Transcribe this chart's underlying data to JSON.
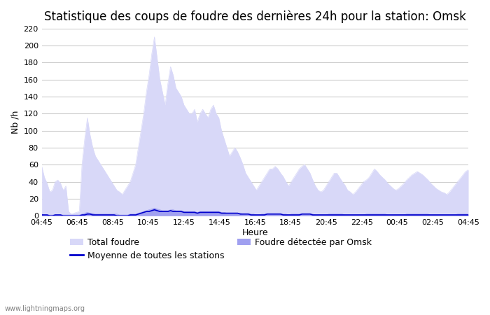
{
  "title": "Statistique des coups de foudre des dernières 24h pour la station: Omsk",
  "ylabel": "Nb /h",
  "xlabel": "Heure",
  "watermark": "www.lightningmaps.org",
  "ylim": [
    0,
    220
  ],
  "yticks": [
    0,
    20,
    40,
    60,
    80,
    100,
    120,
    140,
    160,
    180,
    200,
    220
  ],
  "xtick_labels": [
    "04:45",
    "06:45",
    "08:45",
    "10:45",
    "12:45",
    "14:45",
    "16:45",
    "18:45",
    "20:45",
    "22:45",
    "00:45",
    "02:45",
    "04:45"
  ],
  "color_total": "#d8d8f8",
  "color_detected": "#a0a0f0",
  "color_moyenne": "#0000cc",
  "color_bg": "#ffffff",
  "color_grid": "#cccccc",
  "title_fontsize": 12,
  "label_fontsize": 9,
  "tick_fontsize": 8,
  "total_foudre": [
    58,
    45,
    38,
    28,
    30,
    40,
    42,
    38,
    30,
    35,
    5,
    2,
    3,
    4,
    5,
    60,
    90,
    115,
    95,
    80,
    70,
    65,
    60,
    55,
    50,
    45,
    40,
    35,
    30,
    28,
    25,
    30,
    35,
    40,
    50,
    60,
    80,
    100,
    120,
    145,
    165,
    190,
    210,
    185,
    160,
    145,
    130,
    155,
    175,
    165,
    150,
    145,
    140,
    130,
    125,
    120,
    120,
    125,
    110,
    120,
    125,
    120,
    115,
    125,
    130,
    120,
    115,
    100,
    90,
    80,
    70,
    75,
    80,
    75,
    68,
    60,
    50,
    45,
    40,
    35,
    30,
    35,
    40,
    45,
    50,
    55,
    55,
    58,
    55,
    50,
    46,
    40,
    35,
    40,
    45,
    50,
    55,
    58,
    60,
    55,
    50,
    42,
    35,
    30,
    28,
    30,
    35,
    40,
    45,
    50,
    50,
    45,
    40,
    36,
    30,
    28,
    25,
    28,
    32,
    36,
    40,
    42,
    45,
    50,
    55,
    52,
    48,
    45,
    42,
    38,
    35,
    32,
    30,
    32,
    35,
    38,
    42,
    45,
    48,
    50,
    52,
    50,
    48,
    45,
    42,
    38,
    35,
    32,
    30,
    28,
    27,
    25,
    28,
    32,
    36,
    40,
    44,
    48,
    52,
    54
  ],
  "detected_foudre": [
    2,
    1,
    1,
    1,
    1,
    1,
    1,
    1,
    1,
    1,
    1,
    1,
    1,
    1,
    1,
    2,
    3,
    4,
    3,
    3,
    2,
    2,
    2,
    2,
    2,
    2,
    2,
    2,
    2,
    1,
    1,
    1,
    1,
    2,
    2,
    2,
    3,
    4,
    5,
    6,
    7,
    8,
    9,
    8,
    7,
    6,
    6,
    6,
    7,
    7,
    6,
    6,
    6,
    5,
    5,
    5,
    5,
    5,
    4,
    5,
    5,
    5,
    5,
    5,
    5,
    5,
    5,
    4,
    4,
    3,
    3,
    3,
    3,
    3,
    3,
    2,
    2,
    2,
    2,
    2,
    1,
    1,
    2,
    2,
    2,
    2,
    2,
    2,
    2,
    2,
    2,
    2,
    1,
    2,
    2,
    2,
    2,
    2,
    2,
    2,
    2,
    2,
    1,
    1,
    1,
    1,
    1,
    2,
    2,
    2,
    2,
    2,
    2,
    1,
    1,
    1,
    1,
    1,
    1,
    1,
    1,
    2,
    2,
    2,
    2,
    2,
    2,
    2,
    2,
    1,
    1,
    1,
    1,
    1,
    1,
    1,
    2,
    2,
    2,
    2,
    2,
    2,
    2,
    2,
    2,
    1,
    1,
    1,
    1,
    1,
    1,
    1,
    1,
    1,
    1,
    2,
    2,
    2,
    2,
    2
  ],
  "moyenne": [
    1,
    1,
    1,
    0,
    0,
    1,
    1,
    1,
    0,
    0,
    0,
    0,
    0,
    0,
    0,
    1,
    1,
    2,
    2,
    1,
    1,
    1,
    1,
    1,
    1,
    1,
    1,
    1,
    0,
    0,
    0,
    0,
    0,
    1,
    1,
    1,
    2,
    3,
    4,
    5,
    5,
    6,
    7,
    6,
    5,
    5,
    5,
    5,
    6,
    5,
    5,
    5,
    5,
    4,
    4,
    4,
    4,
    4,
    3,
    4,
    4,
    4,
    4,
    4,
    4,
    4,
    4,
    3,
    3,
    3,
    3,
    3,
    3,
    3,
    2,
    2,
    2,
    2,
    1,
    1,
    1,
    1,
    1,
    1,
    2,
    2,
    2,
    2,
    2,
    2,
    1,
    1,
    1,
    1,
    1,
    1,
    1,
    2,
    2,
    2,
    2,
    1,
    1,
    1,
    1,
    1,
    1,
    1,
    1,
    1,
    1,
    1,
    1,
    1,
    1,
    1,
    1,
    1,
    1,
    1,
    1,
    1,
    1,
    1,
    1,
    1,
    1,
    1,
    1,
    1,
    1,
    1,
    1,
    1,
    1,
    1,
    1,
    1,
    1,
    1,
    1,
    1,
    1,
    1,
    1,
    1,
    1,
    1,
    1,
    1,
    1,
    1,
    1,
    1,
    1,
    1,
    1,
    1,
    1,
    1
  ]
}
